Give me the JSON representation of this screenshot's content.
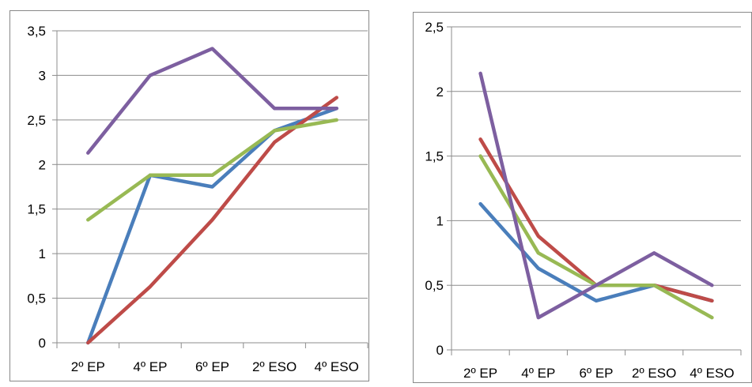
{
  "chart_data": [
    {
      "type": "line",
      "categories": [
        "2º EP",
        "4º EP",
        "6º EP",
        "2º ESO",
        "4º ESO"
      ],
      "ylim": [
        0,
        3.5
      ],
      "yticks": [
        "0",
        "0,5",
        "1",
        "1,5",
        "2",
        "2,5",
        "3",
        "3,5"
      ],
      "grid": true,
      "legend": "none",
      "series": [
        {
          "color": "#4a7ebb",
          "values": [
            0,
            1.88,
            1.75,
            2.38,
            2.63
          ]
        },
        {
          "color": "#be4b48",
          "values": [
            0,
            0.63,
            1.38,
            2.25,
            2.75
          ]
        },
        {
          "color": "#98b954",
          "values": [
            1.38,
            1.88,
            1.88,
            2.38,
            2.5
          ]
        },
        {
          "color": "#7d5fa0",
          "values": [
            2.13,
            3.0,
            3.3,
            2.63,
            2.63
          ]
        }
      ]
    },
    {
      "type": "line",
      "categories": [
        "2º EP",
        "4º EP",
        "6º EP",
        "2º ESO",
        "4º ESO"
      ],
      "ylim": [
        0,
        2.5
      ],
      "yticks": [
        "0",
        "0,5",
        "1",
        "1,5",
        "2",
        "2,5"
      ],
      "grid": true,
      "legend": "none",
      "series": [
        {
          "color": "#4a7ebb",
          "values": [
            1.13,
            0.63,
            0.38,
            0.5,
            0.38
          ]
        },
        {
          "color": "#be4b48",
          "values": [
            1.63,
            0.88,
            0.5,
            0.5,
            0.38
          ]
        },
        {
          "color": "#98b954",
          "values": [
            1.5,
            0.75,
            0.5,
            0.5,
            0.25
          ]
        },
        {
          "color": "#7d5fa0",
          "values": [
            2.14,
            0.25,
            0.5,
            0.75,
            0.5
          ]
        }
      ]
    }
  ]
}
